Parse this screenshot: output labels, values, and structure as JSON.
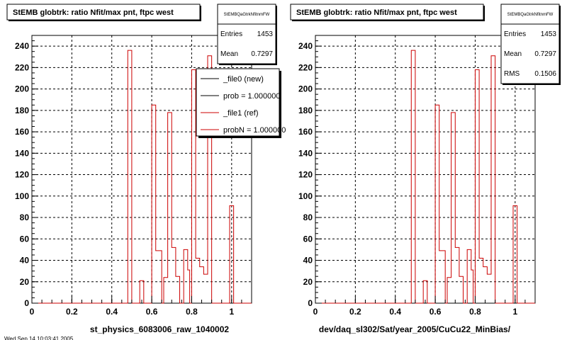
{
  "chart_data": [
    {
      "type": "bar",
      "title": "StEMB globtrk: ratio Nfit/max pnt, ftpc west",
      "xlabel": "st_physics_6083006_raw_1040002",
      "xlim": [
        0,
        1.1
      ],
      "ylim": [
        0,
        250
      ],
      "xticks": [
        0,
        0.2,
        0.4,
        0.6,
        0.8,
        1
      ],
      "yticks": [
        0,
        20,
        40,
        60,
        80,
        100,
        120,
        140,
        160,
        180,
        200,
        220,
        240
      ],
      "grid": true,
      "series": [
        {
          "name": "_file1 (ref)",
          "color": "#cc0000",
          "bins": [
            {
              "x0": 0.0,
              "x1": 0.48,
              "y": 0
            },
            {
              "x0": 0.48,
              "x1": 0.5,
              "y": 236
            },
            {
              "x0": 0.5,
              "x1": 0.54,
              "y": 0
            },
            {
              "x0": 0.54,
              "x1": 0.56,
              "y": 21
            },
            {
              "x0": 0.56,
              "x1": 0.6,
              "y": 0
            },
            {
              "x0": 0.6,
              "x1": 0.62,
              "y": 185
            },
            {
              "x0": 0.62,
              "x1": 0.65,
              "y": 49
            },
            {
              "x0": 0.65,
              "x1": 0.66,
              "y": 0
            },
            {
              "x0": 0.66,
              "x1": 0.68,
              "y": 24
            },
            {
              "x0": 0.68,
              "x1": 0.7,
              "y": 178
            },
            {
              "x0": 0.7,
              "x1": 0.72,
              "y": 52
            },
            {
              "x0": 0.72,
              "x1": 0.74,
              "y": 25
            },
            {
              "x0": 0.74,
              "x1": 0.76,
              "y": 0
            },
            {
              "x0": 0.76,
              "x1": 0.78,
              "y": 50
            },
            {
              "x0": 0.78,
              "x1": 0.79,
              "y": 31
            },
            {
              "x0": 0.79,
              "x1": 0.8,
              "y": 0
            },
            {
              "x0": 0.8,
              "x1": 0.82,
              "y": 218
            },
            {
              "x0": 0.82,
              "x1": 0.84,
              "y": 42
            },
            {
              "x0": 0.84,
              "x1": 0.86,
              "y": 34
            },
            {
              "x0": 0.86,
              "x1": 0.88,
              "y": 27
            },
            {
              "x0": 0.88,
              "x1": 0.9,
              "y": 231
            },
            {
              "x0": 0.9,
              "x1": 0.99,
              "y": 0
            },
            {
              "x0": 0.99,
              "x1": 1.01,
              "y": 91
            },
            {
              "x0": 1.01,
              "x1": 1.1,
              "y": 0
            }
          ]
        }
      ],
      "stats": [
        {
          "label": "StEMBQaGtrkNfitnmFW",
          "value": ""
        },
        {
          "label": "Entries",
          "value": "1453"
        },
        {
          "label": "Mean",
          "value": "0.7297"
        }
      ],
      "legend": {
        "placement": "top-right",
        "entries": [
          {
            "label": "_file0 (new)",
            "color": "#000000"
          },
          {
            "label": "prob = 1.000000",
            "color": "#000000"
          },
          {
            "label": "_file1 (ref)",
            "color": "#cc0000"
          },
          {
            "label": "probN = 1.000000",
            "color": "#cc0000"
          }
        ]
      }
    },
    {
      "type": "bar",
      "title": "StEMB globtrk: ratio Nfit/max pnt, ftpc west",
      "xlabel": "dev/daq_sl302/Sat/year_2005/CuCu22_MinBias/",
      "xlim": [
        0,
        1.1
      ],
      "ylim": [
        0,
        250
      ],
      "xticks": [
        0,
        0.2,
        0.4,
        0.6,
        0.8,
        1
      ],
      "yticks": [
        0,
        20,
        40,
        60,
        80,
        100,
        120,
        140,
        160,
        180,
        200,
        220,
        240
      ],
      "grid": true,
      "series": [
        {
          "name": "",
          "color": "#cc0000",
          "bins": [
            {
              "x0": 0.0,
              "x1": 0.48,
              "y": 0
            },
            {
              "x0": 0.48,
              "x1": 0.5,
              "y": 236
            },
            {
              "x0": 0.5,
              "x1": 0.54,
              "y": 0
            },
            {
              "x0": 0.54,
              "x1": 0.56,
              "y": 21
            },
            {
              "x0": 0.56,
              "x1": 0.6,
              "y": 0
            },
            {
              "x0": 0.6,
              "x1": 0.62,
              "y": 185
            },
            {
              "x0": 0.62,
              "x1": 0.65,
              "y": 49
            },
            {
              "x0": 0.65,
              "x1": 0.66,
              "y": 0
            },
            {
              "x0": 0.66,
              "x1": 0.68,
              "y": 24
            },
            {
              "x0": 0.68,
              "x1": 0.7,
              "y": 178
            },
            {
              "x0": 0.7,
              "x1": 0.72,
              "y": 52
            },
            {
              "x0": 0.72,
              "x1": 0.74,
              "y": 25
            },
            {
              "x0": 0.74,
              "x1": 0.76,
              "y": 0
            },
            {
              "x0": 0.76,
              "x1": 0.78,
              "y": 50
            },
            {
              "x0": 0.78,
              "x1": 0.79,
              "y": 31
            },
            {
              "x0": 0.79,
              "x1": 0.8,
              "y": 0
            },
            {
              "x0": 0.8,
              "x1": 0.82,
              "y": 218
            },
            {
              "x0": 0.82,
              "x1": 0.84,
              "y": 42
            },
            {
              "x0": 0.84,
              "x1": 0.86,
              "y": 34
            },
            {
              "x0": 0.86,
              "x1": 0.88,
              "y": 27
            },
            {
              "x0": 0.88,
              "x1": 0.9,
              "y": 231
            },
            {
              "x0": 0.9,
              "x1": 0.99,
              "y": 0
            },
            {
              "x0": 0.99,
              "x1": 1.01,
              "y": 91
            },
            {
              "x0": 1.01,
              "x1": 1.1,
              "y": 0
            }
          ]
        }
      ],
      "stats": [
        {
          "label": "StEMBQaGtrkNfitnmFW",
          "value": ""
        },
        {
          "label": "Entries",
          "value": "1453"
        },
        {
          "label": "Mean",
          "value": "0.7297"
        },
        {
          "label": "RMS",
          "value": "0.1506"
        }
      ],
      "legend": null
    }
  ],
  "footer_text": "Wed Sep 14 10:03:41 2005"
}
